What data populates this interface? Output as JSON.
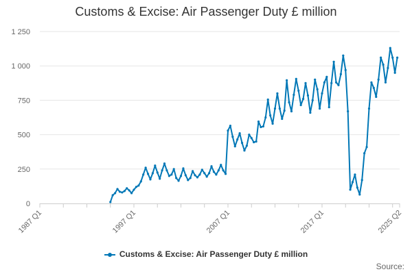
{
  "chart_data": {
    "type": "line",
    "title": "Customs & Excise: Air Passenger Duty £ million",
    "xlabel": "",
    "ylabel": "",
    "ylim": [
      0,
      1250
    ],
    "yticks": [
      0,
      250,
      500,
      750,
      1000,
      1250
    ],
    "ytick_labels": [
      "0",
      "250",
      "500",
      "750",
      "1 000",
      "1 250"
    ],
    "x_start": "1987 Q1",
    "x_end": "2025 Q2",
    "xtick_labels": [
      "1987 Q1",
      "1997 Q1",
      "2007 Q1",
      "2017 Q1",
      "2025 Q2"
    ],
    "xtick_index": [
      0,
      40,
      80,
      120,
      153
    ],
    "grid": true,
    "legend": "bottom",
    "series": [
      {
        "name": "Customs & Excise: Air Passenger Duty £ million",
        "color": "#0077b6",
        "start_index": 30,
        "values": [
          10,
          60,
          75,
          105,
          85,
          80,
          90,
          110,
          95,
          75,
          100,
          120,
          130,
          160,
          210,
          260,
          215,
          175,
          220,
          275,
          225,
          180,
          240,
          290,
          240,
          200,
          210,
          250,
          185,
          165,
          200,
          255,
          205,
          170,
          185,
          235,
          205,
          190,
          210,
          245,
          220,
          195,
          220,
          270,
          230,
          210,
          240,
          280,
          240,
          215,
          530,
          565,
          485,
          415,
          465,
          510,
          440,
          385,
          420,
          500,
          475,
          445,
          450,
          595,
          555,
          560,
          625,
          755,
          640,
          580,
          690,
          800,
          690,
          615,
          675,
          895,
          735,
          670,
          790,
          905,
          820,
          715,
          760,
          875,
          785,
          660,
          750,
          900,
          830,
          690,
          800,
          880,
          920,
          700,
          875,
          1030,
          880,
          860,
          940,
          1075,
          970,
          670,
          100,
          155,
          210,
          115,
          65,
          170,
          365,
          410,
          690,
          880,
          840,
          775,
          900,
          1060,
          1010,
          880,
          985,
          1130,
          1060,
          950,
          1060
        ]
      }
    ]
  },
  "source_label": "Source:"
}
